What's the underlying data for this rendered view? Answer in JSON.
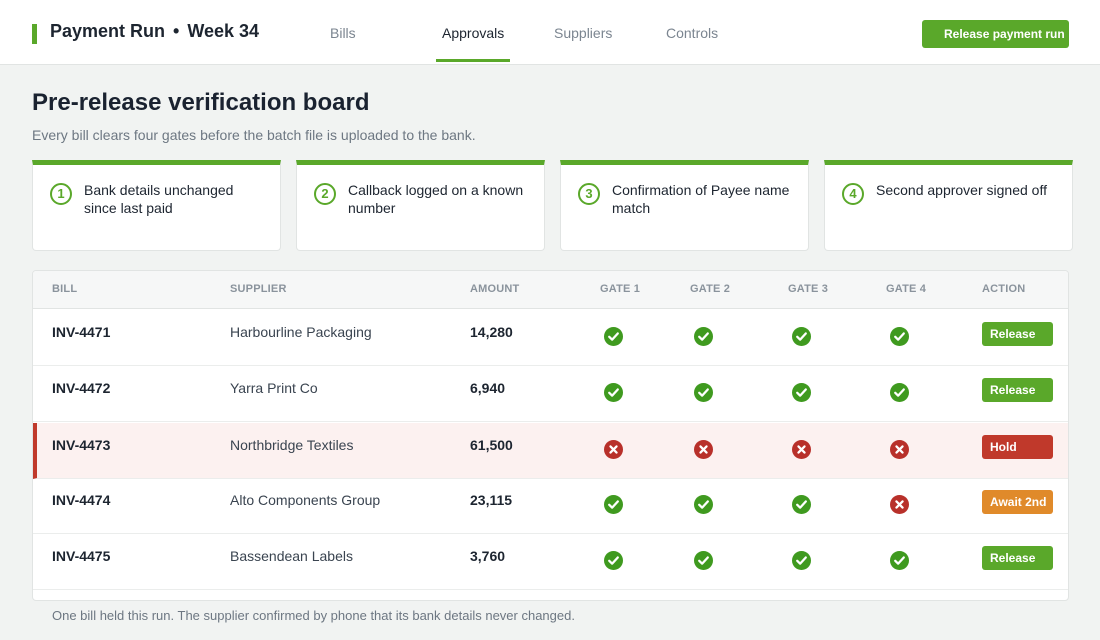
{
  "header": {
    "title": "Payment Run",
    "separator": "•",
    "week": "Week 34",
    "tabs": [
      {
        "label": "Bills",
        "active": false
      },
      {
        "label": "Approvals",
        "active": true
      },
      {
        "label": "Suppliers",
        "active": false
      },
      {
        "label": "Controls",
        "active": false
      }
    ],
    "release_button": "Release payment run"
  },
  "page": {
    "title": "Pre-release verification board",
    "subtitle": "Every bill clears four gates before the batch file is uploaded to the bank."
  },
  "gates": [
    {
      "number": "1",
      "label": "Bank details unchanged since last paid"
    },
    {
      "number": "2",
      "label": "Callback logged on a known number"
    },
    {
      "number": "3",
      "label": "Confirmation of Payee name match"
    },
    {
      "number": "4",
      "label": "Second approver signed off"
    }
  ],
  "table": {
    "columns": [
      "BILL",
      "SUPPLIER",
      "AMOUNT",
      "GATE 1",
      "GATE 2",
      "GATE 3",
      "GATE 4",
      "ACTION"
    ],
    "rows": [
      {
        "bill": "INV-4471",
        "supplier": "Harbourline Packaging",
        "amount": "14,280",
        "gates": [
          "pass",
          "pass",
          "pass",
          "pass"
        ],
        "action": "Release",
        "action_type": "release",
        "held": false
      },
      {
        "bill": "INV-4472",
        "supplier": "Yarra Print Co",
        "amount": "6,940",
        "gates": [
          "pass",
          "pass",
          "pass",
          "pass"
        ],
        "action": "Release",
        "action_type": "release",
        "held": false
      },
      {
        "bill": "INV-4473",
        "supplier": "Northbridge Textiles",
        "amount": "61,500",
        "gates": [
          "fail",
          "fail",
          "fail",
          "fail"
        ],
        "action": "Hold",
        "action_type": "hold",
        "held": true
      },
      {
        "bill": "INV-4474",
        "supplier": "Alto Components Group",
        "amount": "23,115",
        "gates": [
          "pass",
          "pass",
          "pass",
          "fail"
        ],
        "action": "Await 2nd",
        "action_type": "await",
        "held": false
      },
      {
        "bill": "INV-4475",
        "supplier": "Bassendean Labels",
        "amount": "3,760",
        "gates": [
          "pass",
          "pass",
          "pass",
          "pass"
        ],
        "action": "Release",
        "action_type": "release",
        "held": false
      }
    ]
  },
  "footnote": "One bill held this run. The supplier confirmed by phone that its bank details never changed.",
  "colors": {
    "accent": "#5aa82a",
    "pass": "#3f9a1f",
    "fail": "#b8302a",
    "release": "#5aa82a",
    "hold": "#c0392b",
    "await": "#e08a2a"
  },
  "icons": {
    "pass": "check-circle-icon",
    "fail": "x-circle-icon"
  }
}
